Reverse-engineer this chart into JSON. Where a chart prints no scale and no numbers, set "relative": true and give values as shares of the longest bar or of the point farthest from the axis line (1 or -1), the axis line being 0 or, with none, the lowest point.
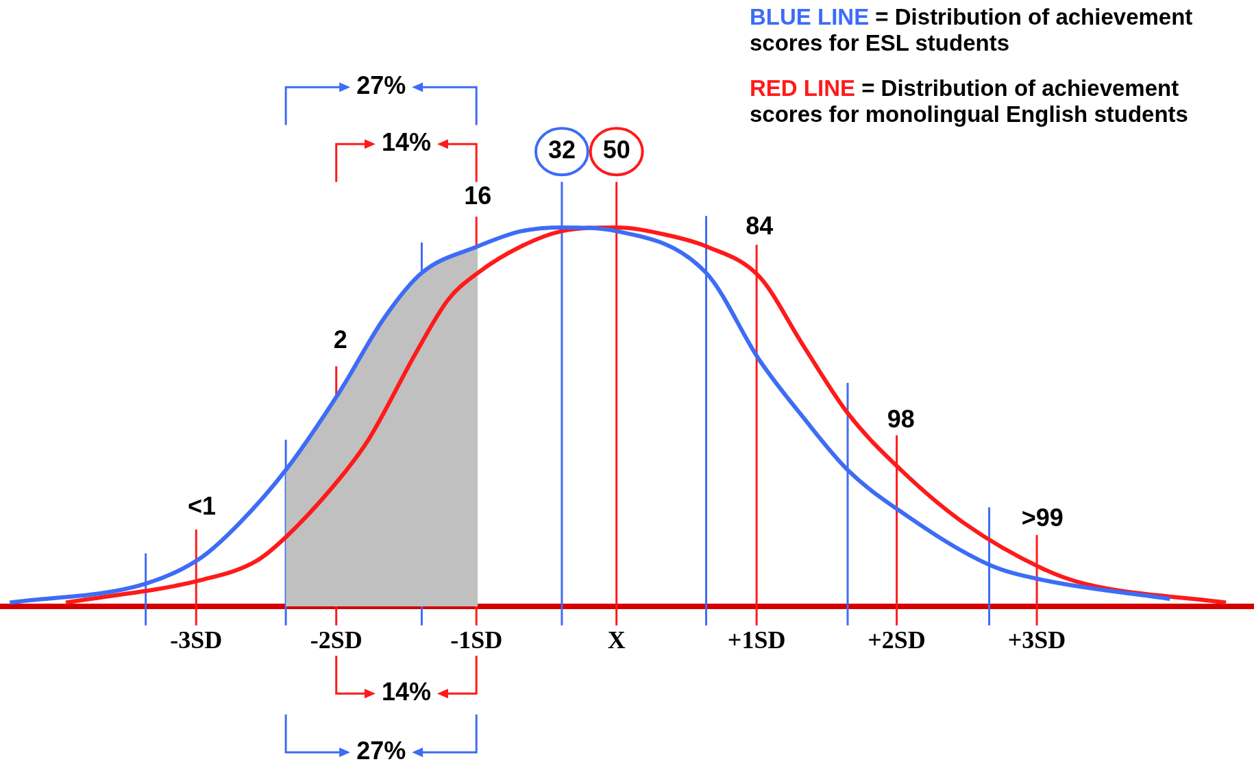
{
  "chart_data": {
    "type": "line",
    "relative": true,
    "series": [
      {
        "name": "BLUE LINE",
        "color": "#3d6cf5",
        "x": [
          -4.33,
          -3.36,
          -2.96,
          -2.69,
          -2.36,
          -1.97,
          -1.66,
          -1.39,
          -0.99,
          -0.68,
          -0.39,
          0,
          0.64,
          1.02,
          1.33,
          1.65,
          2.03,
          2.66,
          3.04,
          3.95
        ],
        "values": [
          0.01,
          0.06,
          0.13,
          0.22,
          0.36,
          0.57,
          0.76,
          0.88,
          0.95,
          0.99,
          1,
          0.99,
          0.88,
          0.65,
          0.5,
          0.36,
          0.25,
          0.11,
          0.07,
          0.02
        ]
      },
      {
        "name": "RED LINE",
        "color": "#ff1a1a",
        "x": [
          -3.93,
          -2.96,
          -2.57,
          -2.34,
          -1.97,
          -1.77,
          -1.43,
          -1.2,
          -0.99,
          -0.68,
          -0.39,
          0,
          0.36,
          0.64,
          1.02,
          1.33,
          1.65,
          2.03,
          2.48,
          3.04,
          3.34,
          4.35
        ],
        "values": [
          0.01,
          0.07,
          0.12,
          0.19,
          0.34,
          0.44,
          0.67,
          0.81,
          0.88,
          0.95,
          0.99,
          1,
          0.98,
          0.95,
          0.87,
          0.69,
          0.51,
          0.36,
          0.22,
          0.1,
          0.06,
          0.01
        ]
      },
      {
        "type": "area",
        "color": "#c0c0c0",
        "x": [
          -2.36,
          -1.97,
          -1.66,
          -1.39,
          -0.99
        ],
        "values": [
          0.36,
          0.57,
          0.76,
          0.88,
          0.95
        ]
      }
    ],
    "xlim": [
      -4.4,
      4.55
    ],
    "xticks": [
      {
        "value": -3,
        "label": "-3SD"
      },
      {
        "value": -2,
        "label": "-2SD"
      },
      {
        "value": -1,
        "label": "-1SD"
      },
      {
        "value": 0,
        "label": "X"
      },
      {
        "value": 1,
        "label": "+1SD"
      },
      {
        "value": 2,
        "label": "+2SD"
      },
      {
        "value": 3,
        "label": "+3SD"
      }
    ],
    "tick_labels": "x",
    "grid": false,
    "legend": "top right",
    "annotations": [
      "= Distribution of achievement scores for ESL students",
      "= Distribution of achievement scores for monolingual English students",
      "27%",
      "14%",
      {
        "text": "32",
        "x": -0.39,
        "y": 1
      },
      {
        "text": "<1",
        "x": -2.96,
        "y": 0.13
      },
      {
        "text": "2",
        "x": -1.97,
        "y": 0.57
      },
      {
        "text": "16",
        "x": -0.99,
        "y": 0.95
      },
      {
        "text": "50",
        "x": 0,
        "y": 1
      },
      {
        "text": "84",
        "x": 1.02,
        "y": 0.87
      },
      {
        "text": "98",
        "x": 2.03,
        "y": 0.36
      },
      {
        "text": ">99",
        "x": 3.04,
        "y": 0.1
      }
    ],
    "ref_lines": [
      {
        "axis": "x",
        "value": -3.36,
        "color": "#3d6cf5"
      },
      {
        "axis": "x",
        "value": -2.36,
        "color": "#3d6cf5"
      },
      {
        "axis": "x",
        "value": -1.39,
        "color": "#3d6cf5"
      },
      {
        "axis": "x",
        "value": -0.39,
        "color": "#3d6cf5"
      },
      {
        "axis": "x",
        "value": 0.64,
        "color": "#3d6cf5"
      },
      {
        "axis": "x",
        "value": 1.65,
        "color": "#3d6cf5"
      },
      {
        "axis": "x",
        "value": 2.66,
        "color": "#3d6cf5"
      },
      {
        "axis": "x",
        "value": -3,
        "color": "#ff1a1a"
      },
      {
        "axis": "x",
        "value": -2,
        "color": "#ff1a1a"
      },
      {
        "axis": "x",
        "value": -1,
        "color": "#ff1a1a"
      },
      {
        "axis": "x",
        "value": 0,
        "color": "#ff1a1a"
      },
      {
        "axis": "x",
        "value": 1,
        "color": "#ff1a1a"
      },
      {
        "axis": "x",
        "value": 2,
        "color": "#ff1a1a"
      },
      {
        "axis": "x",
        "value": 3,
        "color": "#ff1a1a"
      }
    ]
  }
}
